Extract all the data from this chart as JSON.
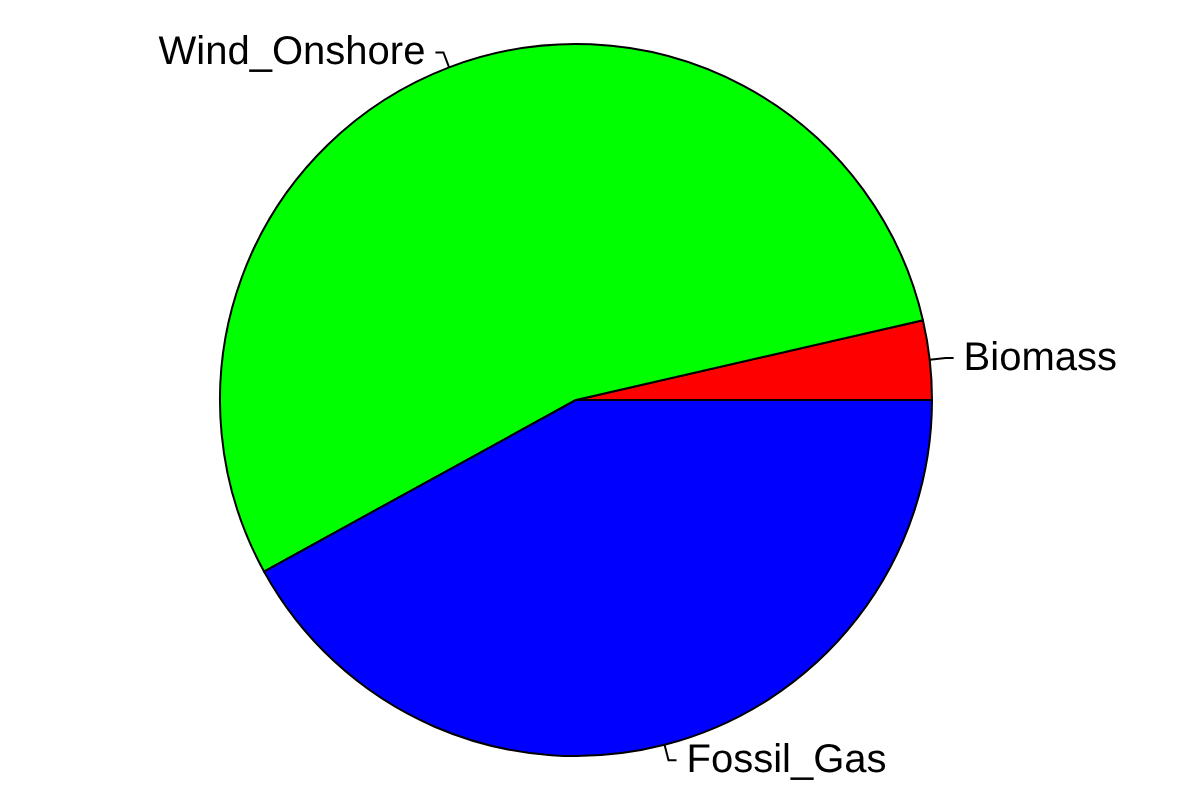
{
  "chart_data": {
    "type": "pie",
    "categories": [
      "Biomass",
      "Wind_Onshore",
      "Fossil_Gas"
    ],
    "values": [
      3.6,
      54.4,
      42
    ],
    "colors": [
      "#ff0000",
      "#00ff00",
      "#0000ff"
    ]
  }
}
